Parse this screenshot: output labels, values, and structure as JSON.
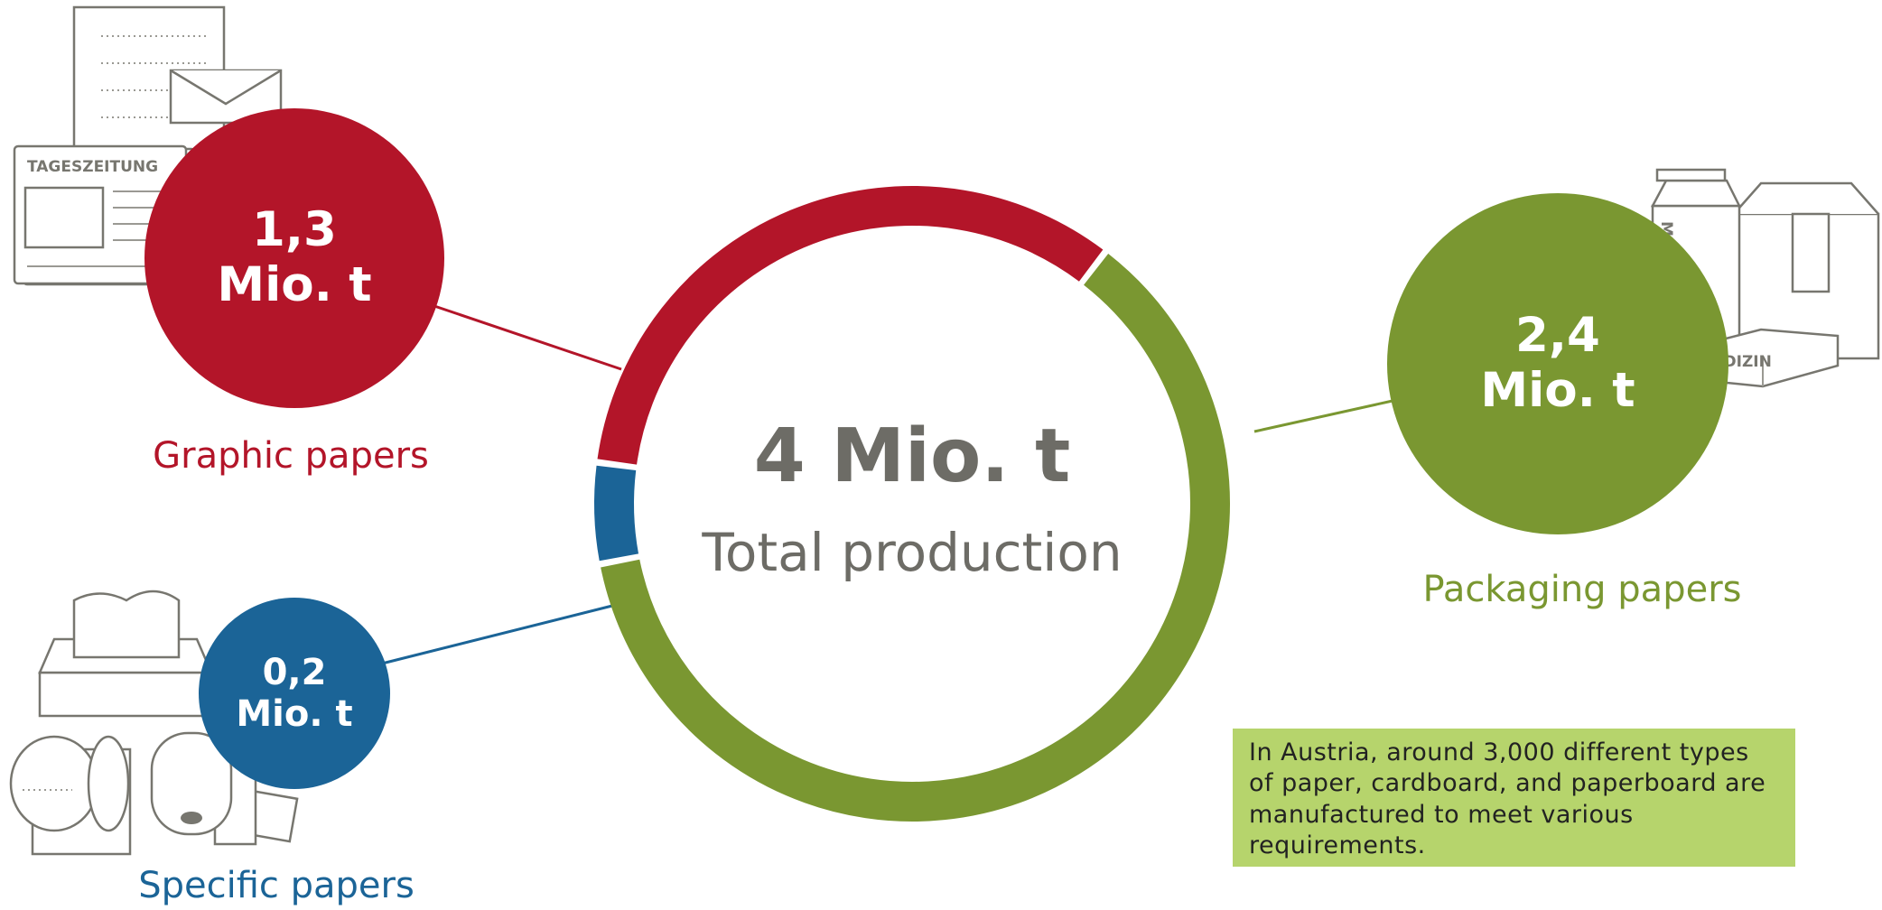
{
  "chart_data": {
    "type": "donut",
    "categories": [
      "Graphic papers",
      "Packaging papers",
      "Specific papers"
    ],
    "values": [
      1.3,
      2.4,
      0.2
    ],
    "value_labels": [
      "1,3 Mio. t",
      "2,4 Mio. t",
      "0,2 Mio. t"
    ],
    "colors": [
      "#b31529",
      "#7a9731",
      "#1b6497"
    ],
    "total_label": "4 Mio. t",
    "subtitle": "Total production",
    "note": "In Austria, around 3,000 different types of paper, cardboard, and paperboard are manufactured to meet various requirements."
  }
}
